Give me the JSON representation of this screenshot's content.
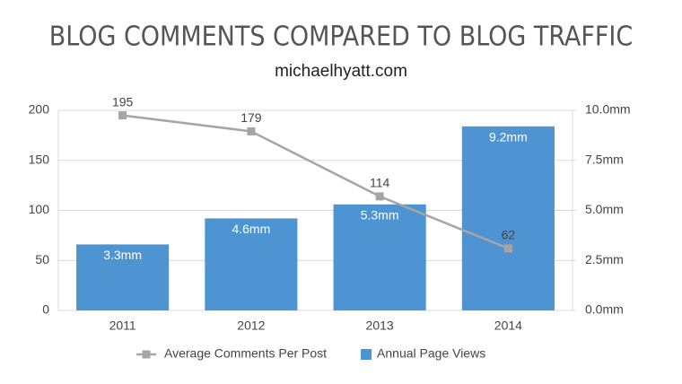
{
  "chart_data": {
    "type": "bar",
    "title": "BLOG COMMENTS COMPARED TO BLOG TRAFFIC",
    "subtitle": "michaelhyatt.com",
    "categories": [
      "2011",
      "2012",
      "2013",
      "2014"
    ],
    "series": [
      {
        "name": "Average Comments Per Post",
        "type": "line",
        "color": "#a5a5a5",
        "values": [
          195,
          179,
          114,
          62
        ]
      },
      {
        "name": "Annual Page Views",
        "type": "bar",
        "color": "#4f94d2",
        "axis": "y2",
        "values": [
          3.3,
          4.6,
          5.3,
          9.2
        ],
        "value_labels": [
          "3.3mm",
          "4.6mm",
          "5.3mm",
          "9.2mm"
        ]
      }
    ],
    "ylim": [
      0,
      200
    ],
    "yticks": [
      0,
      50,
      100,
      150,
      200
    ],
    "y2lim": [
      0,
      10
    ],
    "y2ticks": [
      {
        "value": 0,
        "label": "0.0mm"
      },
      {
        "value": 2.5,
        "label": "2.5mm"
      },
      {
        "value": 5,
        "label": "5.0mm"
      },
      {
        "value": 7.5,
        "label": "7.5mm"
      },
      {
        "value": 10,
        "label": "10.0mm"
      }
    ],
    "grid": true,
    "legend": "bottom"
  }
}
